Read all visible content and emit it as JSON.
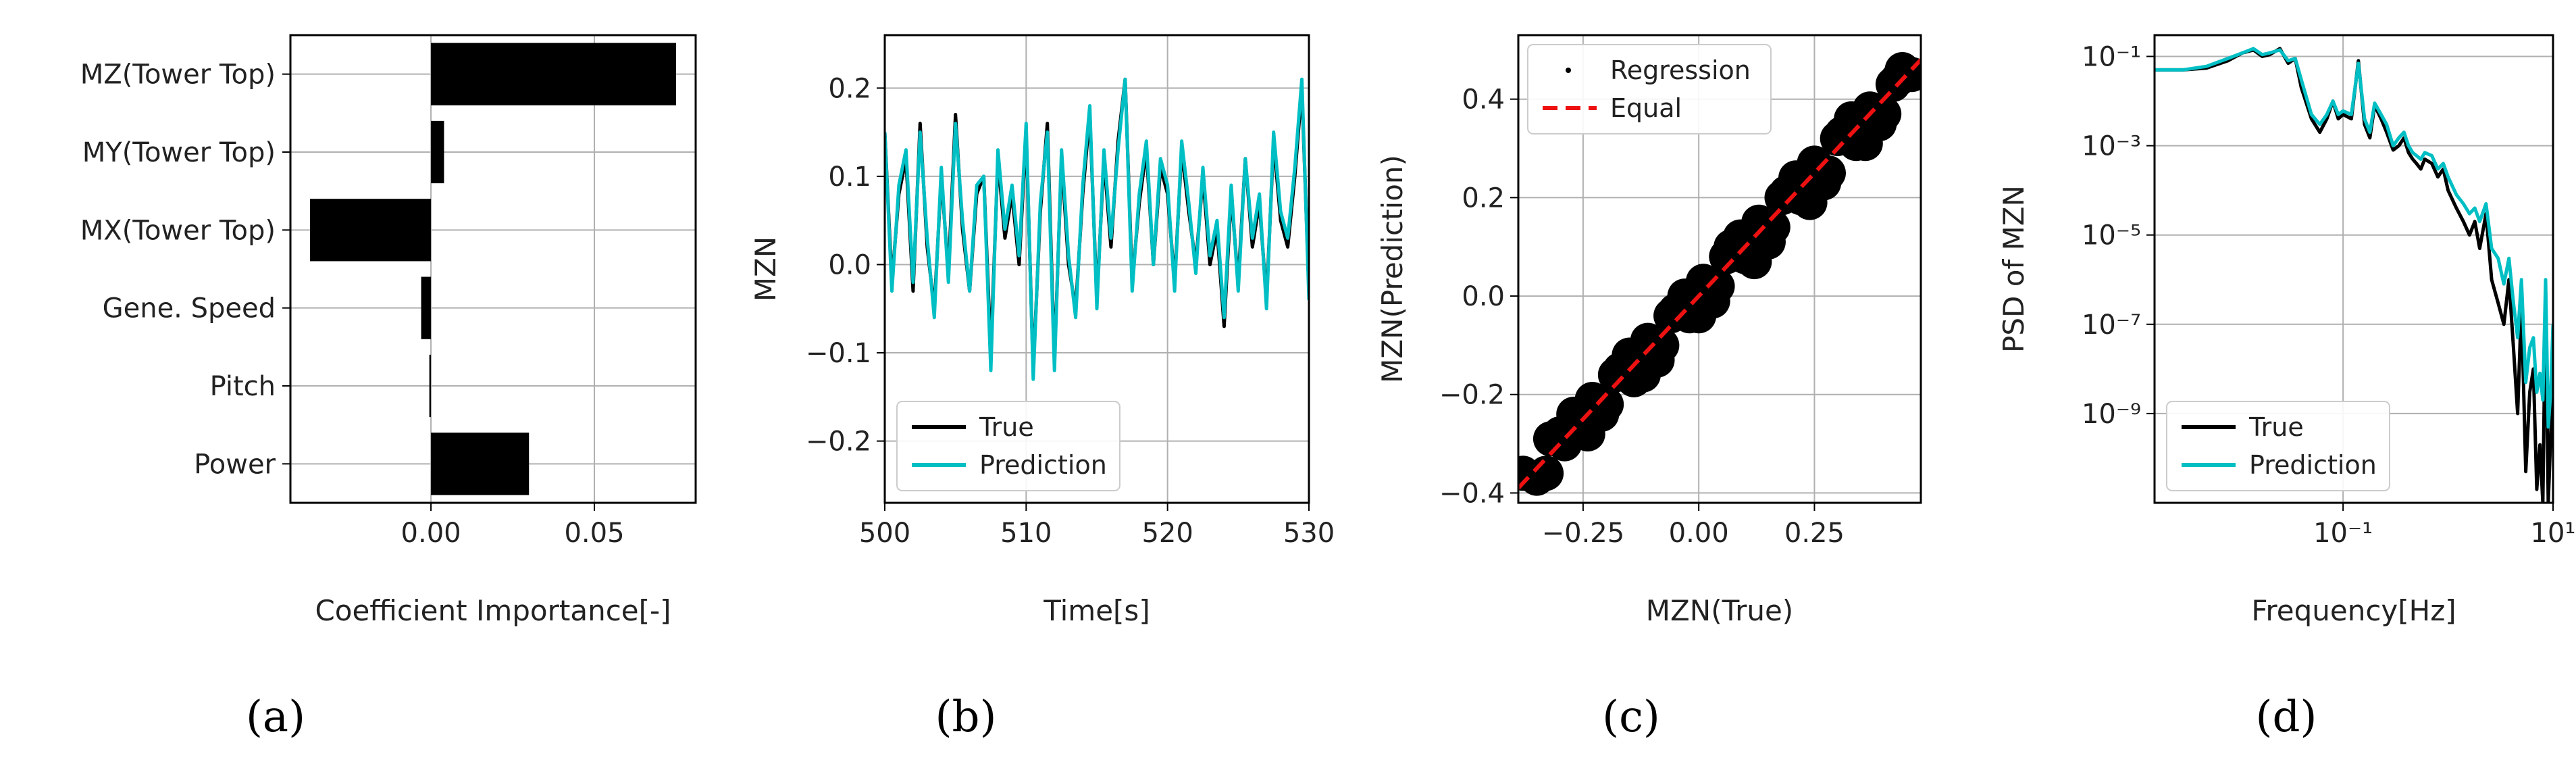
{
  "colors": {
    "true": "#000000",
    "prediction": "#00bfc4",
    "equal": "#ee1111",
    "grid": "#b0b0b0",
    "bar": "#000000"
  },
  "panel_labels": [
    "(a)",
    "(b)",
    "(c)",
    "(d)"
  ],
  "chart_data": [
    {
      "type": "bar",
      "orientation": "horizontal",
      "categories": [
        "MZ(Tower Top)",
        "MY(Tower Top)",
        "MX(Tower Top)",
        "Gene. Speed",
        "Pitch",
        "Power"
      ],
      "values": [
        0.075,
        0.004,
        -0.037,
        -0.003,
        -0.0005,
        0.03
      ],
      "xlim": [
        -0.043,
        0.081
      ],
      "xticks": [
        0.0,
        0.05
      ],
      "xtick_labels": [
        "0.00",
        "0.05"
      ],
      "xlabel": "Coefficient Importance[-]",
      "grid": true
    },
    {
      "type": "line",
      "xlim": [
        500,
        530
      ],
      "ylim": [
        -0.27,
        0.26
      ],
      "xticks": [
        500,
        510,
        520,
        530
      ],
      "xtick_labels": [
        "500",
        "510",
        "520",
        "530"
      ],
      "yticks": [
        -0.2,
        -0.1,
        0.0,
        0.1,
        0.2
      ],
      "ytick_labels": [
        "−0.2",
        "−0.1",
        "0.0",
        "0.1",
        "0.2"
      ],
      "xlabel": "Time[s]",
      "ylabel": "MZN",
      "legend": {
        "position": "lower-left",
        "entries": [
          "True",
          "Prediction"
        ]
      },
      "grid": true,
      "x": [
        500,
        500.5,
        501,
        501.5,
        502,
        502.5,
        503,
        503.5,
        504,
        504.5,
        505,
        505.5,
        506,
        506.5,
        507,
        507.5,
        508,
        508.5,
        509,
        509.5,
        510,
        510.5,
        511,
        511.5,
        512,
        512.5,
        513,
        513.5,
        514,
        514.5,
        515,
        515.5,
        516,
        516.5,
        517,
        517.5,
        518,
        518.5,
        519,
        519.5,
        520,
        520.5,
        521,
        521.5,
        522,
        522.5,
        523,
        523.5,
        524,
        524.5,
        525,
        525.5,
        526,
        526.5,
        527,
        527.5,
        528,
        528.5,
        529,
        529.5,
        530
      ],
      "series": [
        {
          "name": "True",
          "values": [
            0.15,
            -0.02,
            0.08,
            0.12,
            -0.03,
            0.16,
            0.02,
            -0.05,
            0.1,
            -0.01,
            0.17,
            0.04,
            -0.03,
            0.08,
            0.1,
            -0.1,
            0.12,
            0.03,
            0.08,
            0.0,
            0.15,
            -0.12,
            0.06,
            0.16,
            -0.11,
            0.12,
            0.0,
            -0.05,
            0.08,
            0.17,
            -0.04,
            0.12,
            0.02,
            0.14,
            0.21,
            -0.02,
            0.07,
            0.13,
            0.0,
            0.11,
            0.08,
            -0.02,
            0.13,
            0.06,
            0.0,
            0.1,
            0.0,
            0.04,
            -0.07,
            0.08,
            -0.02,
            0.12,
            0.02,
            0.07,
            -0.04,
            0.14,
            0.05,
            0.02,
            0.1,
            0.2,
            -0.03
          ]
        },
        {
          "name": "Prediction",
          "values": [
            0.15,
            -0.03,
            0.09,
            0.13,
            -0.02,
            0.15,
            0.03,
            -0.06,
            0.11,
            -0.02,
            0.16,
            0.05,
            -0.03,
            0.09,
            0.1,
            -0.12,
            0.13,
            0.04,
            0.09,
            0.01,
            0.16,
            -0.13,
            0.07,
            0.15,
            -0.12,
            0.13,
            0.01,
            -0.06,
            0.09,
            0.18,
            -0.05,
            0.13,
            0.03,
            0.13,
            0.21,
            -0.03,
            0.08,
            0.14,
            0.0,
            0.12,
            0.09,
            -0.03,
            0.14,
            0.07,
            -0.01,
            0.11,
            0.01,
            0.05,
            -0.06,
            0.09,
            -0.03,
            0.12,
            0.03,
            0.08,
            -0.05,
            0.15,
            0.06,
            0.03,
            0.11,
            0.21,
            -0.04
          ]
        }
      ]
    },
    {
      "type": "scatter",
      "xlim": [
        -0.39,
        0.48
      ],
      "ylim": [
        -0.42,
        0.53
      ],
      "xticks": [
        -0.25,
        0.0,
        0.25
      ],
      "xtick_labels": [
        "−0.25",
        "0.00",
        "0.25"
      ],
      "yticks": [
        -0.4,
        -0.2,
        0.0,
        0.2,
        0.4
      ],
      "ytick_labels": [
        "−0.4",
        "−0.2",
        "0.0",
        "0.2",
        "0.4"
      ],
      "xlabel": "MZN(True)",
      "ylabel": "MZN(Prediction)",
      "legend": {
        "position": "upper-left",
        "entries": [
          "Regression",
          "Equal"
        ]
      },
      "grid": true,
      "regression_x": [
        -0.38,
        -0.35,
        -0.32,
        -0.29,
        -0.26,
        -0.23,
        -0.2,
        -0.17,
        -0.14,
        -0.11,
        -0.08,
        -0.05,
        -0.02,
        0.01,
        0.04,
        0.07,
        0.1,
        0.13,
        0.16,
        0.19,
        0.22,
        0.25,
        0.28,
        0.31,
        0.34,
        0.37,
        0.4,
        0.43,
        0.46,
        -0.33,
        -0.27,
        -0.21,
        -0.15,
        -0.09,
        -0.03,
        0.03,
        0.09,
        0.15,
        0.21,
        0.27,
        0.33,
        0.39,
        0.44,
        -0.3,
        -0.24,
        -0.18,
        -0.12,
        -0.06,
        0.0,
        0.06,
        0.12,
        0.18,
        0.24,
        0.3,
        0.36,
        0.42
      ],
      "regression_y": [
        -0.36,
        -0.37,
        -0.29,
        -0.3,
        -0.27,
        -0.21,
        -0.22,
        -0.15,
        -0.17,
        -0.09,
        -0.1,
        -0.03,
        -0.04,
        0.03,
        0.02,
        0.1,
        0.08,
        0.15,
        0.14,
        0.21,
        0.2,
        0.27,
        0.25,
        0.33,
        0.31,
        0.38,
        0.37,
        0.44,
        0.45,
        -0.36,
        -0.24,
        -0.24,
        -0.12,
        -0.13,
        0.0,
        -0.01,
        0.12,
        0.11,
        0.24,
        0.23,
        0.36,
        0.35,
        0.46,
        -0.28,
        -0.28,
        -0.16,
        -0.16,
        -0.04,
        -0.04,
        0.08,
        0.07,
        0.2,
        0.19,
        0.32,
        0.31,
        0.43
      ],
      "equal_x": [
        -0.39,
        0.48
      ],
      "equal_y": [
        -0.39,
        0.48
      ]
    },
    {
      "type": "line",
      "log_x": true,
      "log_y": true,
      "xlim": [
        0.0016,
        10
      ],
      "ylim": [
        1e-11,
        0.3
      ],
      "xticks": [
        0.1,
        10
      ],
      "xtick_labels": [
        "10⁻¹",
        "10¹"
      ],
      "yticks": [
        1e-09,
        1e-07,
        1e-05,
        0.001,
        0.1
      ],
      "ytick_labels": [
        "10⁻⁹",
        "10⁻⁷",
        "10⁻⁵",
        "10⁻³",
        "10⁻¹"
      ],
      "xlabel": "Frequency[Hz]",
      "ylabel": "PSD of MZN",
      "legend": {
        "position": "lower-left",
        "entries": [
          "True",
          "Prediction"
        ]
      },
      "grid": true,
      "x": [
        0.0016,
        0.003,
        0.005,
        0.008,
        0.011,
        0.014,
        0.017,
        0.02,
        0.025,
        0.03,
        0.035,
        0.04,
        0.05,
        0.06,
        0.07,
        0.08,
        0.09,
        0.1,
        0.12,
        0.14,
        0.16,
        0.18,
        0.2,
        0.23,
        0.26,
        0.3,
        0.34,
        0.38,
        0.42,
        0.46,
        0.5,
        0.55,
        0.6,
        0.7,
        0.8,
        0.9,
        1.0,
        1.2,
        1.4,
        1.6,
        1.8,
        2.0,
        2.3,
        2.6,
        3.0,
        3.4,
        3.8,
        4.2,
        4.6,
        5.0,
        5.5,
        6.0,
        6.5,
        7.0,
        7.5,
        8.0,
        8.5,
        9.0,
        9.5,
        10
      ],
      "series": [
        {
          "name": "True",
          "values": [
            0.05,
            0.05,
            0.055,
            0.08,
            0.12,
            0.14,
            0.1,
            0.11,
            0.15,
            0.07,
            0.09,
            0.02,
            0.004,
            0.002,
            0.004,
            0.01,
            0.004,
            0.005,
            0.004,
            0.08,
            0.003,
            0.0015,
            0.008,
            0.004,
            0.002,
            0.0008,
            0.001,
            0.0015,
            0.0007,
            0.0005,
            0.0004,
            0.0003,
            0.0005,
            0.0004,
            0.0002,
            0.0003,
            0.0001,
            4e-05,
            2e-05,
            1e-05,
            2e-05,
            5e-06,
            3e-05,
            1e-06,
            3e-07,
            1e-07,
            1e-06,
            3e-08,
            1e-09,
            3e-07,
            5e-11,
            3e-09,
            1e-08,
            2e-11,
            2e-10,
            1e-11,
            5e-07,
            1e-11,
            3e-10,
            1e-08
          ]
        },
        {
          "name": "Prediction",
          "values": [
            0.05,
            0.05,
            0.06,
            0.09,
            0.12,
            0.15,
            0.11,
            0.12,
            0.14,
            0.08,
            0.09,
            0.03,
            0.005,
            0.003,
            0.005,
            0.01,
            0.005,
            0.006,
            0.005,
            0.07,
            0.004,
            0.002,
            0.009,
            0.005,
            0.003,
            0.001,
            0.0015,
            0.002,
            0.001,
            0.0007,
            0.0006,
            0.0005,
            0.0007,
            0.0006,
            0.0003,
            0.0004,
            0.0002,
            8e-05,
            5e-05,
            3e-05,
            4e-05,
            2e-05,
            5e-05,
            5e-06,
            3e-06,
            8e-07,
            3e-06,
            3e-07,
            5e-08,
            1e-06,
            5e-09,
            3e-08,
            5e-08,
            3e-09,
            8e-09,
            2e-09,
            1e-06,
            5e-10,
            3e-09,
            1e-07
          ]
        }
      ]
    }
  ]
}
